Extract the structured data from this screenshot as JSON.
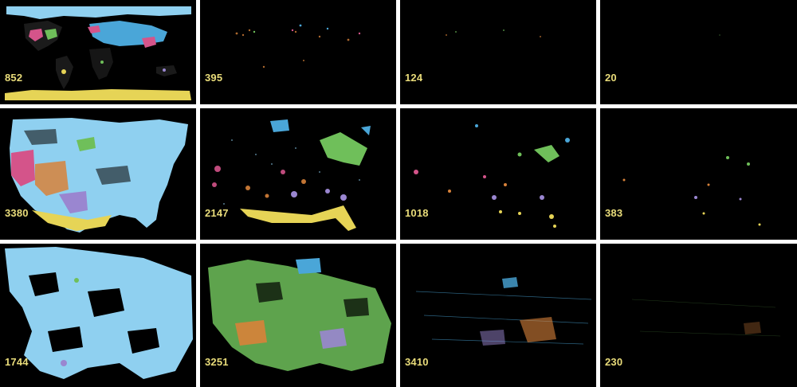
{
  "rows": [
    {
      "name": "world",
      "panels": [
        "852",
        "395",
        "124",
        "20"
      ]
    },
    {
      "name": "usa",
      "panels": [
        "3380",
        "2147",
        "1018",
        "383"
      ]
    },
    {
      "name": "region",
      "panels": [
        "1744",
        "3251",
        "3410",
        "230"
      ]
    }
  ],
  "colors": {
    "background": "#000000",
    "label": "#e9dc7a",
    "light_blue": "#8fd0f0",
    "blue": "#4aa6d8",
    "green": "#6fbf5a",
    "pink": "#d4548a",
    "orange": "#d8823a",
    "purple": "#9a86d0",
    "yellow": "#e6d456"
  }
}
